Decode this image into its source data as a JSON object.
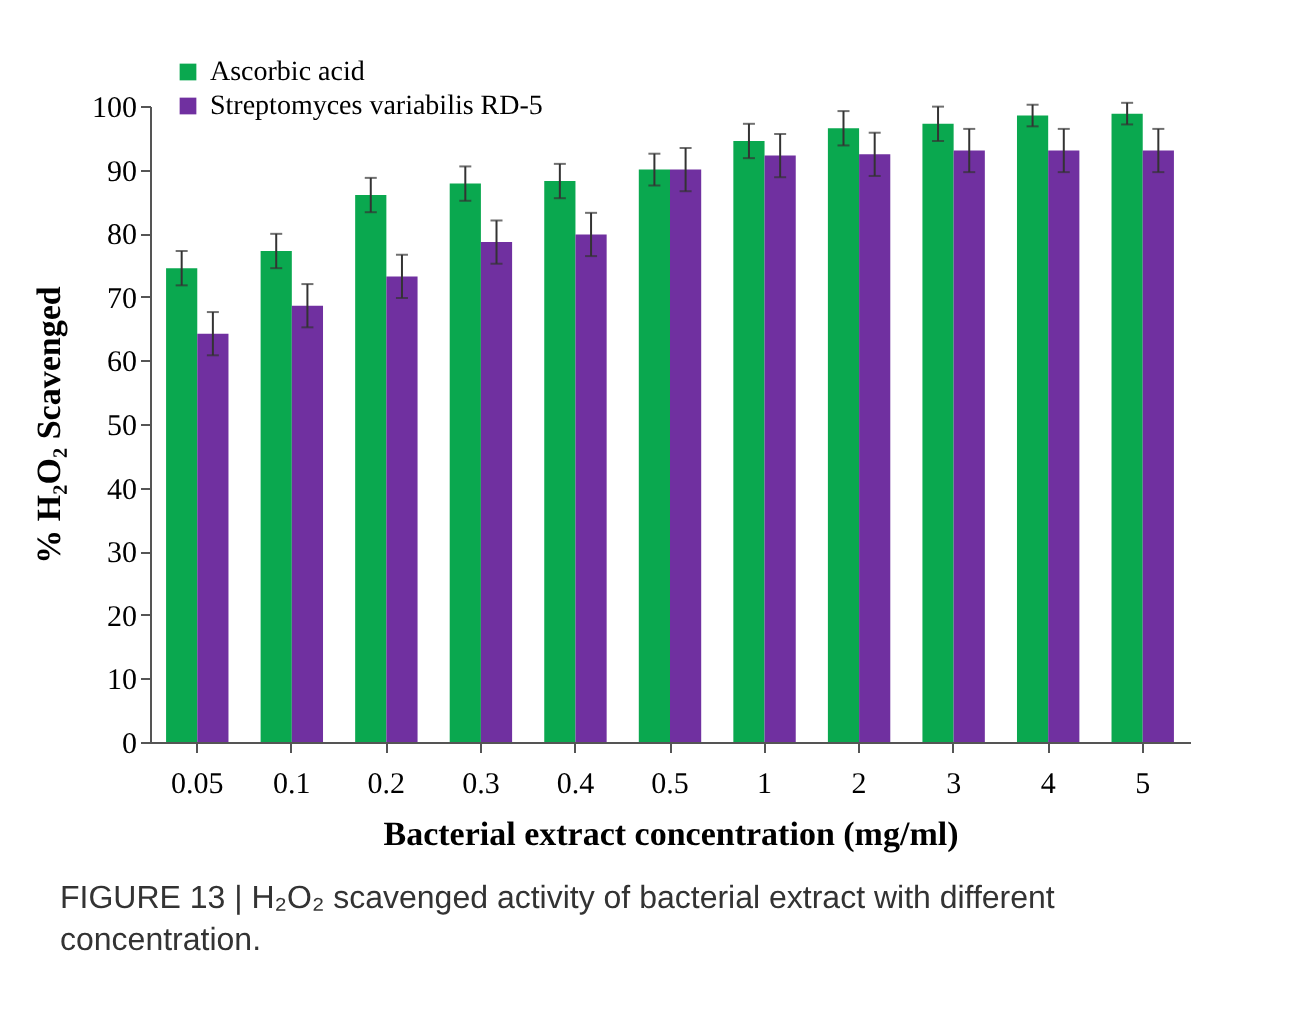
{
  "chart_data": {
    "type": "bar",
    "categories": [
      "0.05",
      "0.1",
      "0.2",
      "0.3",
      "0.4",
      "0.5",
      "1",
      "2",
      "3",
      "4",
      "5"
    ],
    "series": [
      {
        "name": "Ascorbic acid",
        "color": "#0aa84f",
        "values": [
          74.5,
          77.2,
          86,
          87.8,
          88.2,
          90,
          94.5,
          96.5,
          97.2,
          98.5,
          98.8
        ],
        "errors": [
          2.7,
          2.7,
          2.7,
          2.7,
          2.7,
          2.5,
          2.7,
          2.7,
          2.7,
          1.7,
          1.7
        ]
      },
      {
        "name": "Streptomyces variabilis RD-5",
        "color": "#7030a0",
        "values": [
          64.2,
          68.6,
          73.2,
          78.6,
          79.8,
          90,
          92.2,
          92.4,
          93,
          93,
          93
        ],
        "errors": [
          3.4,
          3.4,
          3.4,
          3.4,
          3.4,
          3.4,
          3.4,
          3.4,
          3.4,
          3.4,
          3.4
        ]
      }
    ],
    "xlabel": "Bacterial extract concentration (mg/ml)",
    "ylabel": "% H₂O₂ Scavenged",
    "ylim": [
      0,
      100
    ],
    "yticks": [
      0,
      10,
      20,
      30,
      40,
      50,
      60,
      70,
      80,
      90,
      100
    ],
    "grid": false,
    "legend": "top left",
    "annotations": [
      "FIGURE 13 | H₂O₂ scavenged activity of bacterial extract with different concentration."
    ]
  }
}
